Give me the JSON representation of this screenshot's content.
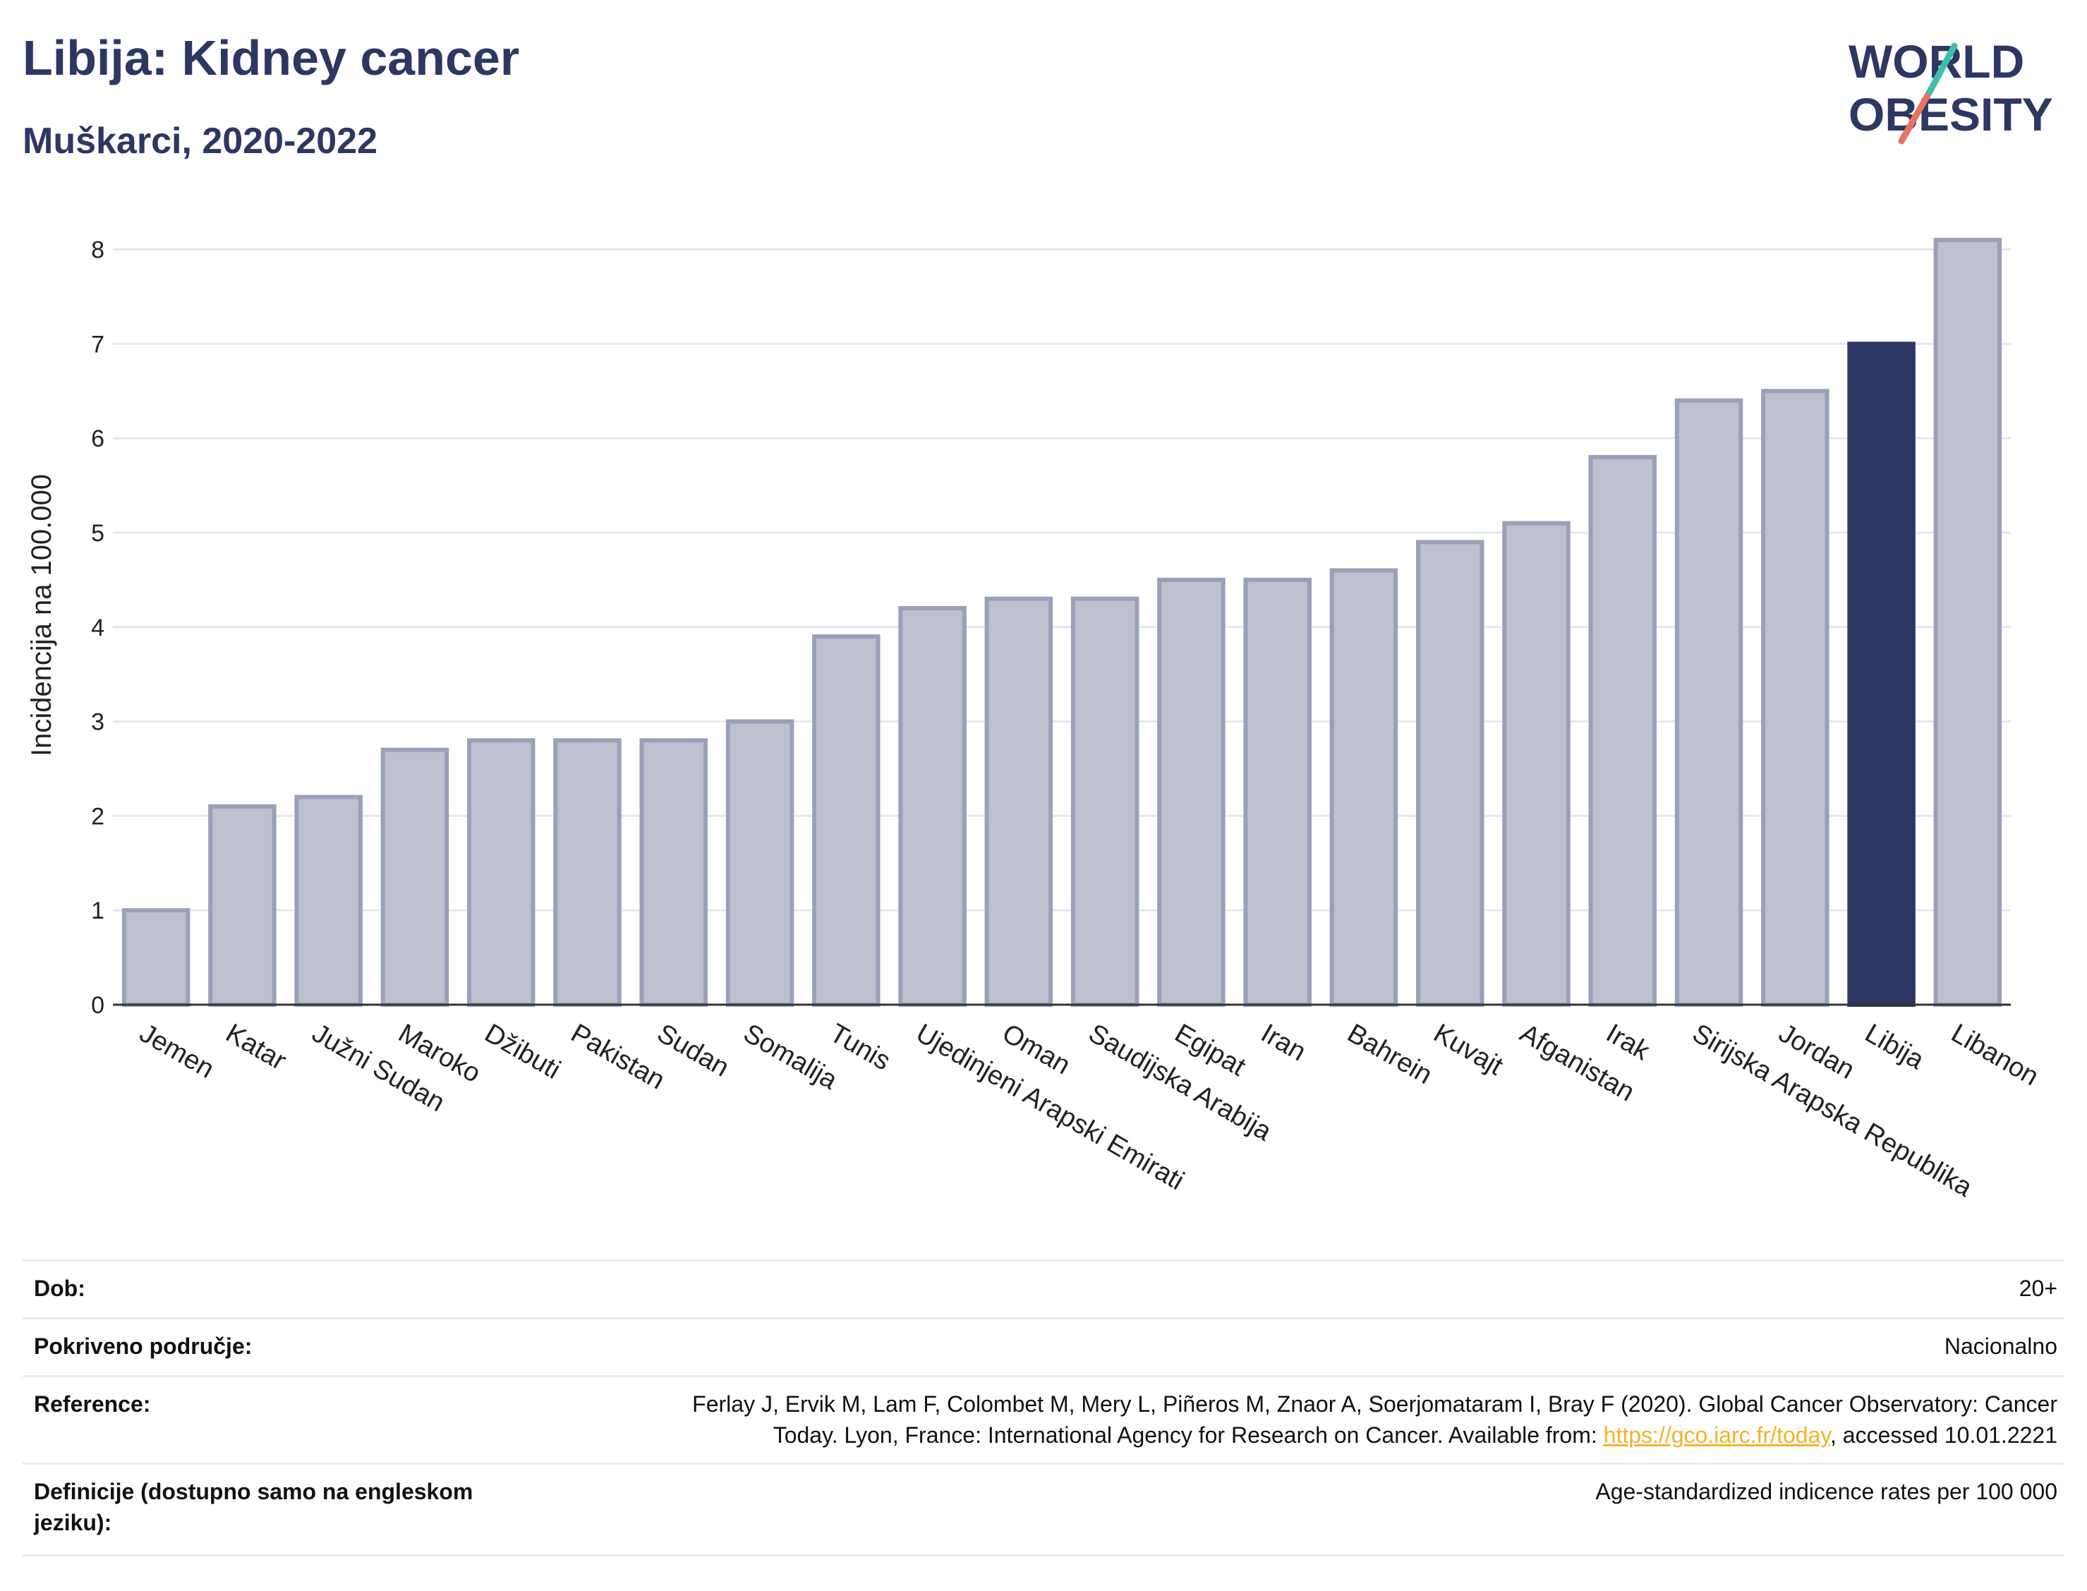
{
  "header": {
    "title": "Libija: Kidney cancer",
    "subtitle": "Muškarci, 2020-2022"
  },
  "logo": {
    "line1": "WORLD",
    "line2": "OBESITY"
  },
  "colors": {
    "bar": "#bcc0cf",
    "bar_border": "#9aa0b8",
    "highlight": "#2c3763",
    "title": "#2c3763",
    "grid": "#e6e8ee",
    "link": "#f0b429"
  },
  "chart_data": {
    "type": "bar",
    "ylabel": "Incidencija na 100.000",
    "ylim": [
      0,
      8.4
    ],
    "yticks": [
      0,
      1,
      2,
      3,
      4,
      5,
      6,
      7,
      8
    ],
    "grid": true,
    "highlight": "Libija",
    "categories": [
      "Jemen",
      "Katar",
      "Južni Sudan",
      "Maroko",
      "Džibuti",
      "Pakistan",
      "Sudan",
      "Somalija",
      "Tunis",
      "Ujedinjeni Arapski Emirati",
      "Oman",
      "Saudijska Arabija",
      "Egipat",
      "Iran",
      "Bahrein",
      "Kuvajt",
      "Afganistan",
      "Irak",
      "Sirijska Arapska Republika",
      "Jordan",
      "Libija",
      "Libanon"
    ],
    "values": [
      1.0,
      2.1,
      2.2,
      2.7,
      2.8,
      2.8,
      2.8,
      3.0,
      3.9,
      4.2,
      4.3,
      4.3,
      4.5,
      4.5,
      4.6,
      4.9,
      5.1,
      5.8,
      6.4,
      6.5,
      7.0,
      8.1
    ]
  },
  "info": {
    "age_label": "Dob:",
    "age_value": "20+",
    "coverage_label": "Pokriveno područje:",
    "coverage_value": "Nacionalno",
    "reference_label": "Reference:",
    "reference_line1": "Ferlay J, Ervik M, Lam F, Colombet M, Mery L, Piñeros M, Znaor A, Soerjomataram I, Bray F (2020). Global Cancer Observatory: Cancer",
    "reference_line2a": "Today. Lyon, France: International Agency for Research on Cancer. Available from: ",
    "reference_link": "https://gco.iarc.fr/today",
    "reference_line2b": ", accessed 10.01.2221",
    "definition_label": "Definicije (dostupno samo na engleskom jeziku):",
    "definition_value": "Age-standardized indicence rates per 100 000"
  }
}
